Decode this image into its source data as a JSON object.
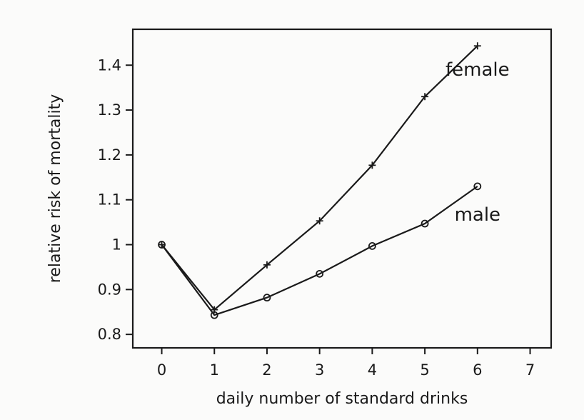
{
  "chart_data": {
    "type": "line",
    "title": "",
    "xlabel": "daily number of standard drinks",
    "ylabel": "relative risk of mortality",
    "xlim": [
      -0.55,
      7.4
    ],
    "ylim": [
      0.77,
      1.48
    ],
    "x_ticks": [
      0,
      1,
      2,
      3,
      4,
      5,
      6,
      7
    ],
    "x_tick_labels": [
      "0",
      "1",
      "2",
      "3",
      "4",
      "5",
      "6",
      "7"
    ],
    "y_ticks": [
      0.8,
      0.9,
      1.0,
      1.1,
      1.2,
      1.3,
      1.4
    ],
    "y_tick_labels": [
      "0.8",
      "0.9",
      "1",
      "1.1",
      "1.2",
      "1.3",
      "1.4"
    ],
    "grid": false,
    "legend": "none (series labelled directly on the plot)",
    "colors": {
      "ink": "#1a1a1a",
      "background": "#fbfbfa"
    },
    "series": [
      {
        "name": "female",
        "marker": "plus",
        "x": [
          0,
          1,
          2,
          3,
          4,
          5,
          6
        ],
        "y": [
          1.0,
          0.855,
          0.955,
          1.053,
          1.177,
          1.33,
          1.443
        ]
      },
      {
        "name": "male",
        "marker": "circle",
        "x": [
          0,
          1,
          2,
          3,
          4,
          5,
          6
        ],
        "y": [
          1.0,
          0.843,
          0.882,
          0.935,
          0.997,
          1.047,
          1.13
        ]
      }
    ]
  }
}
